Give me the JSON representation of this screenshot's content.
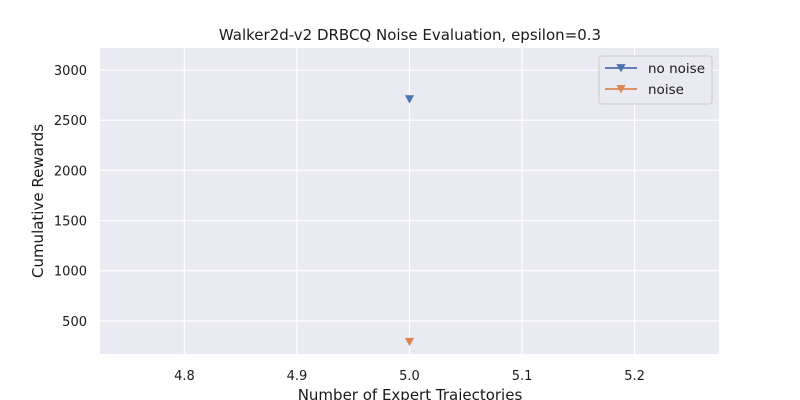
{
  "chart_data": {
    "type": "scatter",
    "title": "Walker2d-v2 DRBCQ Noise Evaluation, epsilon=0.3",
    "xlabel": "Number of Expert Trajectories",
    "ylabel": "Cumulative Rewards",
    "xlim": [
      4.725,
      5.275
    ],
    "ylim": [
      170,
      3220
    ],
    "xticks": [
      4.8,
      4.9,
      5.0,
      5.1,
      5.2
    ],
    "xtick_labels": [
      "4.8",
      "4.9",
      "5.0",
      "5.1",
      "5.2"
    ],
    "yticks": [
      500,
      1000,
      1500,
      2000,
      2500,
      3000
    ],
    "ytick_labels": [
      "500",
      "1000",
      "1500",
      "2000",
      "2500",
      "3000"
    ],
    "grid": true,
    "legend_position": "top-right",
    "marker": "triangle-down",
    "series": [
      {
        "name": "no noise",
        "color": "#4c72b0",
        "x": [
          5.0
        ],
        "y": [
          2710
        ]
      },
      {
        "name": "noise",
        "color": "#dd8452",
        "x": [
          5.0
        ],
        "y": [
          292
        ]
      }
    ]
  }
}
